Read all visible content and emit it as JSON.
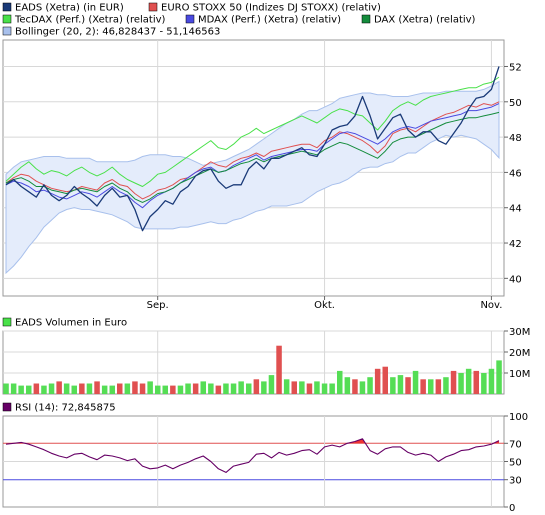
{
  "legend": [
    {
      "label": "EADS (Xetra) (in EUR)",
      "color": "#1a3a78"
    },
    {
      "label": "EURO STOXX 50 (Indizes DJ STOXX) (relativ)",
      "color": "#e05050"
    },
    {
      "label": "TecDAX (Perf.) (Xetra) (relativ)",
      "color": "#49e149"
    },
    {
      "label": "MDAX (Perf.) (Xetra) (relativ)",
      "color": "#4a4ae0"
    },
    {
      "label": "DAX (Xetra) (relativ)",
      "color": "#148c3c"
    },
    {
      "label": "Bollinger (20, 2): 46,828437 - 51,146563",
      "color": "#a8c0ec"
    }
  ],
  "volume_label": "EADS Volumen in Euro",
  "rsi_label": "RSI (14): 72,845875",
  "chart_data": [
    {
      "type": "line",
      "panel": "price",
      "ylim": [
        39,
        53.5
      ],
      "y_ticks": [
        "40",
        "42",
        "44",
        "46",
        "48",
        "50",
        "52"
      ],
      "x_ticks": [
        {
          "label": "Sep.",
          "index": 20
        },
        {
          "label": "Okt.",
          "index": 42
        },
        {
          "label": "Nov.",
          "index": 64
        }
      ],
      "n": 66,
      "series": [
        {
          "name": "EADS (Xetra) (in EUR)",
          "color": "#1a3a78",
          "values": [
            45.3,
            45.6,
            45.2,
            44.9,
            44.6,
            45.3,
            44.7,
            44.4,
            44.7,
            45.2,
            44.8,
            44.5,
            44.1,
            44.7,
            45.1,
            44.6,
            44.7,
            43.9,
            42.7,
            43.5,
            43.9,
            44.4,
            44.2,
            44.9,
            45.2,
            45.8,
            46.1,
            46.2,
            45.5,
            45.1,
            45.3,
            45.3,
            46.2,
            46.6,
            46.2,
            46.8,
            46.8,
            47.0,
            47.2,
            47.4,
            47.0,
            46.9,
            47.6,
            48.4,
            48.6,
            48.7,
            49.2,
            50.3,
            49.2,
            47.9,
            48.5,
            49.1,
            49.3,
            48.4,
            48.0,
            48.3,
            48.3,
            47.8,
            47.6,
            48.2,
            48.8,
            49.6,
            50.2,
            50.3,
            50.7,
            52.0
          ],
          "width": 1.3
        },
        {
          "name": "EURO STOXX 50 (Indizes DJ STOXX) (relativ)",
          "color": "#e05050",
          "values": [
            45.4,
            45.7,
            45.9,
            45.8,
            45.5,
            45.3,
            45.1,
            45.0,
            44.9,
            45.0,
            45.2,
            45.1,
            45.0,
            45.4,
            45.6,
            45.3,
            45.2,
            44.8,
            44.5,
            44.7,
            45.0,
            45.1,
            45.3,
            45.6,
            45.7,
            46.0,
            46.3,
            46.6,
            46.4,
            46.3,
            46.6,
            46.8,
            46.9,
            47.1,
            46.9,
            47.2,
            47.3,
            47.4,
            47.5,
            47.6,
            47.6,
            47.4,
            47.8,
            48.0,
            48.3,
            48.2,
            48.0,
            47.8,
            47.5,
            47.1,
            47.5,
            48.2,
            48.4,
            48.5,
            48.3,
            48.6,
            48.9,
            49.1,
            49.3,
            49.4,
            49.6,
            49.8,
            49.7,
            49.9,
            49.8,
            50.0
          ]
        },
        {
          "name": "TecDAX (Perf.) (Xetra) (relativ)",
          "color": "#49e149",
          "values": [
            45.5,
            45.9,
            46.3,
            46.6,
            46.2,
            45.9,
            46.1,
            46.0,
            45.8,
            46.1,
            46.3,
            46.0,
            45.8,
            46.0,
            46.3,
            45.9,
            45.6,
            45.4,
            45.2,
            45.5,
            45.9,
            46.0,
            46.3,
            46.6,
            46.9,
            47.2,
            47.5,
            47.8,
            47.4,
            47.3,
            47.6,
            48.0,
            48.2,
            48.5,
            48.2,
            48.4,
            48.6,
            48.8,
            49.0,
            49.2,
            49.0,
            48.8,
            49.1,
            49.4,
            49.6,
            49.5,
            49.3,
            49.2,
            48.8,
            48.4,
            48.9,
            49.5,
            49.8,
            50.0,
            49.8,
            50.1,
            50.3,
            50.4,
            50.5,
            50.6,
            50.7,
            50.8,
            50.8,
            51.0,
            51.1,
            51.4
          ]
        },
        {
          "name": "MDAX (Perf.) (Xetra) (relativ)",
          "color": "#4a4ae0",
          "values": [
            45.3,
            45.5,
            45.4,
            45.2,
            44.9,
            45.0,
            44.8,
            44.6,
            44.5,
            44.7,
            44.9,
            44.8,
            44.6,
            44.9,
            45.2,
            44.9,
            44.7,
            44.3,
            44.0,
            44.4,
            44.7,
            44.9,
            45.1,
            45.4,
            45.7,
            46.0,
            46.2,
            46.3,
            46.0,
            46.1,
            46.4,
            46.6,
            46.8,
            47.0,
            46.7,
            46.9,
            47.0,
            47.1,
            47.2,
            47.3,
            47.3,
            47.2,
            47.6,
            47.9,
            48.2,
            48.3,
            48.2,
            48.0,
            47.8,
            47.6,
            47.9,
            48.3,
            48.5,
            48.6,
            48.5,
            48.7,
            48.9,
            49.0,
            49.1,
            49.2,
            49.3,
            49.5,
            49.5,
            49.6,
            49.7,
            49.9
          ]
        },
        {
          "name": "DAX (Xetra) (relativ)",
          "color": "#148c3c",
          "values": [
            45.4,
            45.6,
            45.7,
            45.5,
            45.2,
            45.2,
            45.0,
            44.9,
            44.8,
            45.0,
            45.1,
            45.0,
            44.9,
            45.2,
            45.4,
            45.1,
            44.9,
            44.5,
            44.3,
            44.5,
            44.8,
            44.9,
            45.1,
            45.4,
            45.6,
            45.8,
            46.0,
            46.2,
            46.0,
            46.1,
            46.3,
            46.5,
            46.6,
            46.8,
            46.6,
            46.8,
            46.9,
            47.0,
            47.1,
            47.2,
            47.1,
            47.0,
            47.3,
            47.5,
            47.7,
            47.6,
            47.4,
            47.2,
            47.0,
            46.8,
            47.2,
            47.7,
            47.9,
            48.0,
            48.0,
            48.2,
            48.4,
            48.6,
            48.8,
            48.9,
            49.0,
            49.1,
            49.1,
            49.2,
            49.3,
            49.4
          ]
        }
      ],
      "bollinger": {
        "name": "Bollinger (20, 2): 46,828437 - 51,146563",
        "upper": [
          45.9,
          46.3,
          46.6,
          46.7,
          46.8,
          46.9,
          46.9,
          46.9,
          46.8,
          46.8,
          46.8,
          46.8,
          46.6,
          46.6,
          46.6,
          46.6,
          46.6,
          46.7,
          46.9,
          47.0,
          47.0,
          47.0,
          46.9,
          46.9,
          46.8,
          46.6,
          46.4,
          46.5,
          46.6,
          46.7,
          46.9,
          47.1,
          47.3,
          47.6,
          47.9,
          48.2,
          48.5,
          48.8,
          49.0,
          49.3,
          49.5,
          49.5,
          49.7,
          49.9,
          50.2,
          50.3,
          50.4,
          50.5,
          50.5,
          50.4,
          50.4,
          50.3,
          50.3,
          50.3,
          50.4,
          50.5,
          50.5,
          50.5,
          50.6,
          50.6,
          50.6,
          50.6,
          50.6,
          50.7,
          50.9,
          51.15
        ],
        "lower": [
          40.3,
          40.7,
          41.2,
          41.8,
          42.3,
          42.9,
          43.3,
          43.7,
          43.9,
          44.0,
          43.9,
          43.9,
          43.8,
          43.7,
          43.6,
          43.4,
          43.2,
          42.9,
          42.8,
          42.8,
          42.8,
          42.8,
          42.8,
          42.9,
          42.9,
          43.0,
          43.1,
          43.2,
          43.1,
          43.1,
          43.3,
          43.4,
          43.6,
          43.8,
          43.9,
          44.1,
          44.1,
          44.1,
          44.2,
          44.3,
          44.6,
          44.9,
          45.1,
          45.3,
          45.4,
          45.6,
          45.9,
          46.2,
          46.3,
          46.3,
          46.5,
          46.6,
          46.9,
          47.1,
          47.1,
          47.4,
          47.7,
          47.9,
          48.1,
          48.0,
          48.1,
          48.0,
          47.9,
          47.6,
          47.3,
          46.83
        ]
      }
    },
    {
      "type": "bar",
      "panel": "volume",
      "ylim": [
        0,
        30
      ],
      "y_ticks": [
        "10M",
        "20M",
        "30M"
      ],
      "series": [
        {
          "name": "EADS Volumen in Euro",
          "values": [
            5,
            5,
            4,
            4,
            5,
            4,
            5,
            6,
            5,
            4,
            5,
            5,
            6,
            4,
            4,
            5,
            5,
            6,
            5,
            6,
            4,
            4,
            4,
            4,
            5,
            5,
            6,
            5,
            4,
            5,
            5,
            6,
            5,
            7,
            6,
            9,
            23,
            7,
            6,
            6,
            5,
            6,
            5,
            5,
            11,
            8,
            7,
            6,
            8,
            12,
            13,
            8,
            9,
            8,
            11,
            7,
            7,
            7,
            8,
            11,
            10,
            12,
            11,
            10,
            12,
            16
          ],
          "colors": [
            "g",
            "g",
            "g",
            "g",
            "r",
            "g",
            "g",
            "r",
            "g",
            "g",
            "r",
            "g",
            "r",
            "g",
            "g",
            "r",
            "g",
            "r",
            "r",
            "g",
            "g",
            "g",
            "r",
            "g",
            "g",
            "r",
            "g",
            "g",
            "r",
            "g",
            "g",
            "g",
            "g",
            "r",
            "g",
            "g",
            "r",
            "g",
            "r",
            "g",
            "r",
            "g",
            "g",
            "g",
            "g",
            "g",
            "r",
            "g",
            "g",
            "r",
            "r",
            "g",
            "g",
            "r",
            "g",
            "r",
            "g",
            "r",
            "g",
            "r",
            "g",
            "g",
            "r",
            "g",
            "g",
            "g"
          ]
        }
      ]
    },
    {
      "type": "line",
      "panel": "rsi",
      "ylim": [
        0,
        100
      ],
      "y_ticks": [
        "0",
        "30",
        "50",
        "70",
        "100"
      ],
      "threshold_high": 70,
      "threshold_low": 30,
      "series": [
        {
          "name": "RSI (14)",
          "color": "#660066",
          "values": [
            69,
            70,
            71,
            69,
            66,
            63,
            59,
            56,
            54,
            58,
            59,
            55,
            52,
            57,
            56,
            54,
            51,
            53,
            45,
            42,
            43,
            46,
            42,
            46,
            49,
            53,
            56,
            50,
            42,
            38,
            45,
            47,
            49,
            58,
            59,
            54,
            60,
            57,
            59,
            62,
            63,
            58,
            66,
            68,
            66,
            70,
            72,
            75,
            62,
            58,
            64,
            66,
            66,
            60,
            57,
            59,
            57,
            50,
            55,
            58,
            62,
            63,
            66,
            67,
            69,
            73
          ]
        }
      ]
    }
  ]
}
